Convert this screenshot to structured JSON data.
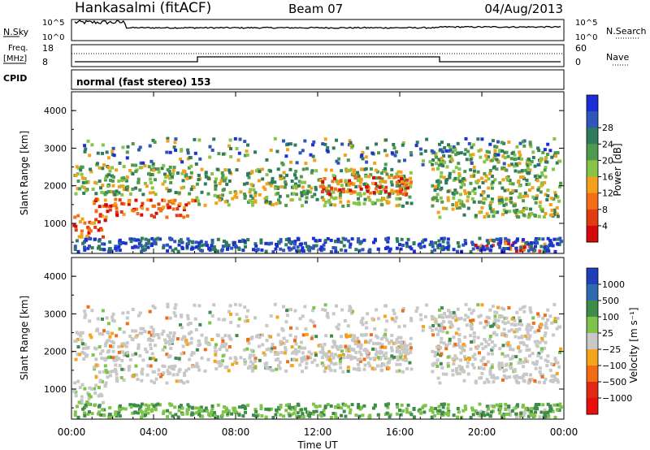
{
  "header": {
    "station": "Hankasalmi (fitACF)",
    "beam": "Beam 07",
    "date": "04/Aug/2013"
  },
  "noise_panel": {
    "left_label": "N.Sky",
    "left_ticks": [
      "10^5",
      "10^0"
    ],
    "right_label": "N.Search",
    "right_ticks": [
      "10^5",
      "10^0"
    ]
  },
  "freq_panel": {
    "left_label_line1": "Freq.",
    "left_label_line2": "[MHz]",
    "left_ticks": [
      "18",
      "8"
    ],
    "right_label": "Nave",
    "right_ticks": [
      "60",
      "0"
    ]
  },
  "cpid_panel": {
    "label": "CPID",
    "text": "normal (fast stereo) 153"
  },
  "chart_data": [
    {
      "type": "heatmap",
      "name": "power",
      "xlabel": "Time UT",
      "ylabel": "Slant Range [km]",
      "y_ticks": [
        "1000",
        "2000",
        "3000",
        "4000"
      ],
      "ylim": [
        200,
        4500
      ],
      "xlim_hours": [
        0,
        24
      ],
      "colorbar": {
        "label": "Power [dB]",
        "ticks": [
          "4",
          "8",
          "12",
          "16",
          "20",
          "24",
          "28"
        ],
        "colors": [
          "#1a2fd6",
          "#2f56b8",
          "#2e7b5e",
          "#4f9a4c",
          "#86c547",
          "#f1a21a",
          "#f36f17",
          "#e23a12",
          "#d40a0a"
        ]
      },
      "features": [
        {
          "start_h": 0.0,
          "end_h": 1.6,
          "range_km": [
            650,
            1250
          ],
          "level": "strong"
        },
        {
          "start_h": 1.0,
          "end_h": 6.0,
          "range_km": [
            1200,
            1700
          ],
          "level": "strong"
        },
        {
          "start_h": 0.0,
          "end_h": 6.0,
          "range_km": [
            1800,
            2600
          ],
          "level": "medium"
        },
        {
          "start_h": 6.0,
          "end_h": 16.5,
          "range_km": [
            1500,
            2500
          ],
          "level": "medium"
        },
        {
          "start_h": 12.0,
          "end_h": 16.5,
          "range_km": [
            1800,
            2300
          ],
          "level": "strong"
        },
        {
          "start_h": 17.5,
          "end_h": 24.0,
          "range_km": [
            1200,
            3000
          ],
          "level": "medium"
        },
        {
          "start_h": 19.5,
          "end_h": 23.0,
          "range_km": [
            300,
            600
          ],
          "level": "strong"
        }
      ]
    },
    {
      "type": "heatmap",
      "name": "velocity",
      "xlabel": "Time UT",
      "ylabel": "Slant Range [km]",
      "y_ticks": [
        "1000",
        "2000",
        "3000",
        "4000"
      ],
      "ylim": [
        200,
        4500
      ],
      "xlim_hours": [
        0,
        24
      ],
      "colorbar": {
        "label": "Velocity [m s⁻¹]",
        "ticks": [
          "1000",
          "500",
          "100",
          "25",
          "−25",
          "−100",
          "−500",
          "−1000"
        ],
        "colors": [
          "#1e3fb8",
          "#2d6ab0",
          "#3e8c4a",
          "#7ec44a",
          "#c8c8c8",
          "#f3a51c",
          "#f26c13",
          "#e02812",
          "#e80e0e"
        ]
      }
    }
  ],
  "x_ticks": [
    "00:00",
    "04:00",
    "08:00",
    "12:00",
    "16:00",
    "20:00",
    "00:00"
  ],
  "x_axis_title": "Time UT"
}
